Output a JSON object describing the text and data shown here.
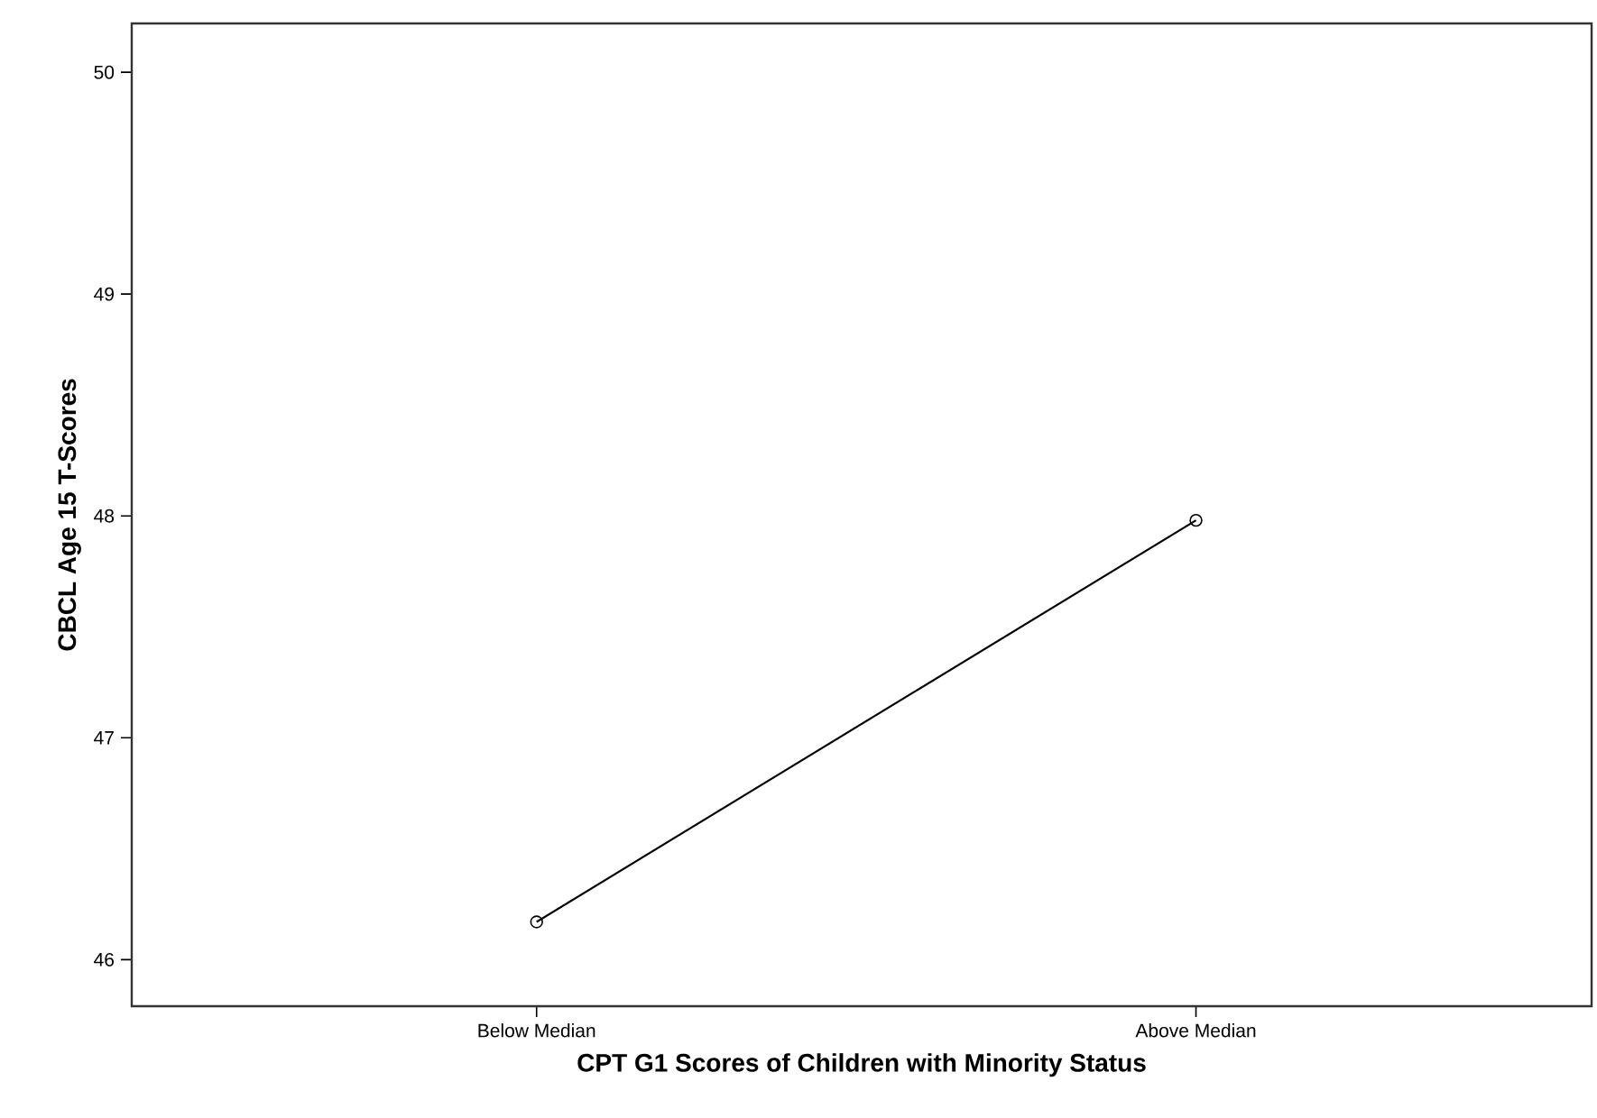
{
  "chart_data": {
    "type": "line",
    "xlabel": "CPT G1 Scores of Children with Minority Status",
    "ylabel": "CBCL Age 15 T-Scores",
    "categories": [
      "Below Median",
      "Above Median"
    ],
    "values": [
      46.17,
      47.98
    ],
    "color": "#000000",
    "ylim": [
      45.79,
      50.22
    ],
    "yticks": [
      46,
      47,
      48,
      49,
      50
    ],
    "marker": "circle",
    "line_style": "solid"
  }
}
